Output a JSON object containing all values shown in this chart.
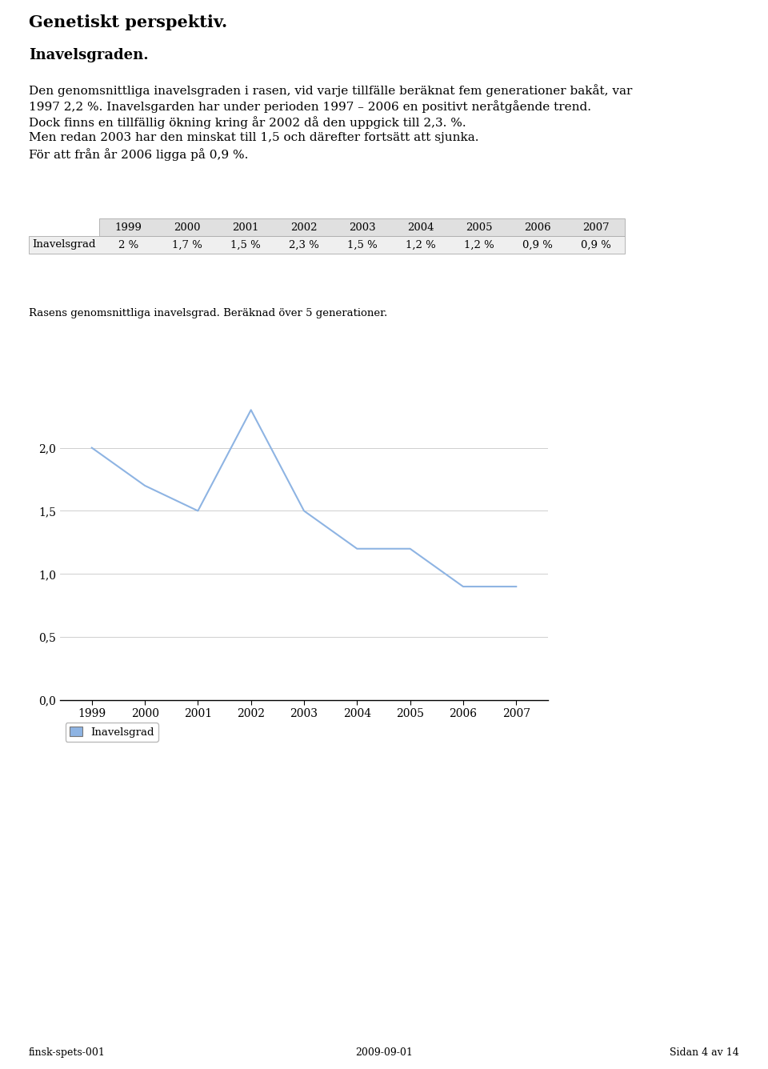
{
  "title1": "Genetiskt perspektiv.",
  "title2": "Inavelsgraden.",
  "body_text": [
    "Den genomsnittliga inavelsgraden i rasen, vid varje tillfälle beräknat fem generationer bakåt, var",
    "1997 2,2 %. Inavelsgarden har under perioden 1997 – 2006 en positivt neråtgående trend.",
    "Dock finns en tillfällig ökning kring år 2002 då den uppgick till 2,3. %.",
    "Men redan 2003 har den minskat till 1,5 och därefter fortsätt att sjunka.",
    "För att från år 2006 ligga på 0,9 %."
  ],
  "table_years": [
    "1999",
    "2000",
    "2001",
    "2002",
    "2003",
    "2004",
    "2005",
    "2006",
    "2007"
  ],
  "table_values": [
    "2 %",
    "1,7 %",
    "1,5 %",
    "2,3 %",
    "1,5 %",
    "1,2 %",
    "1,2 %",
    "0,9 %",
    "0,9 %"
  ],
  "table_row_label": "Inavelsgrad",
  "chart_label": "Rasens genomsnittliga inavelsgrad. Beräknad över 5 generationer.",
  "x_data": [
    1999,
    2000,
    2001,
    2002,
    2003,
    2004,
    2005,
    2006,
    2007
  ],
  "y_data": [
    2.0,
    1.7,
    1.5,
    2.3,
    1.5,
    1.2,
    1.2,
    0.9,
    0.9
  ],
  "y_ticks": [
    0.0,
    0.5,
    1.0,
    1.5,
    2.0
  ],
  "y_tick_labels": [
    "0,0",
    "0,5",
    "1,0",
    "1,5",
    "2,0"
  ],
  "line_color": "#8eb4e3",
  "grid_color": "#c8c8c8",
  "legend_label": "Inavelsgrad",
  "footer_left": "finsk-spets-001",
  "footer_center": "2009-09-01",
  "footer_right": "Sidan 4 av 14",
  "background_color": "#ffffff",
  "table_header_bg": "#e0e0e0",
  "table_row_bg": "#efefef",
  "table_border_color": "#aaaaaa"
}
